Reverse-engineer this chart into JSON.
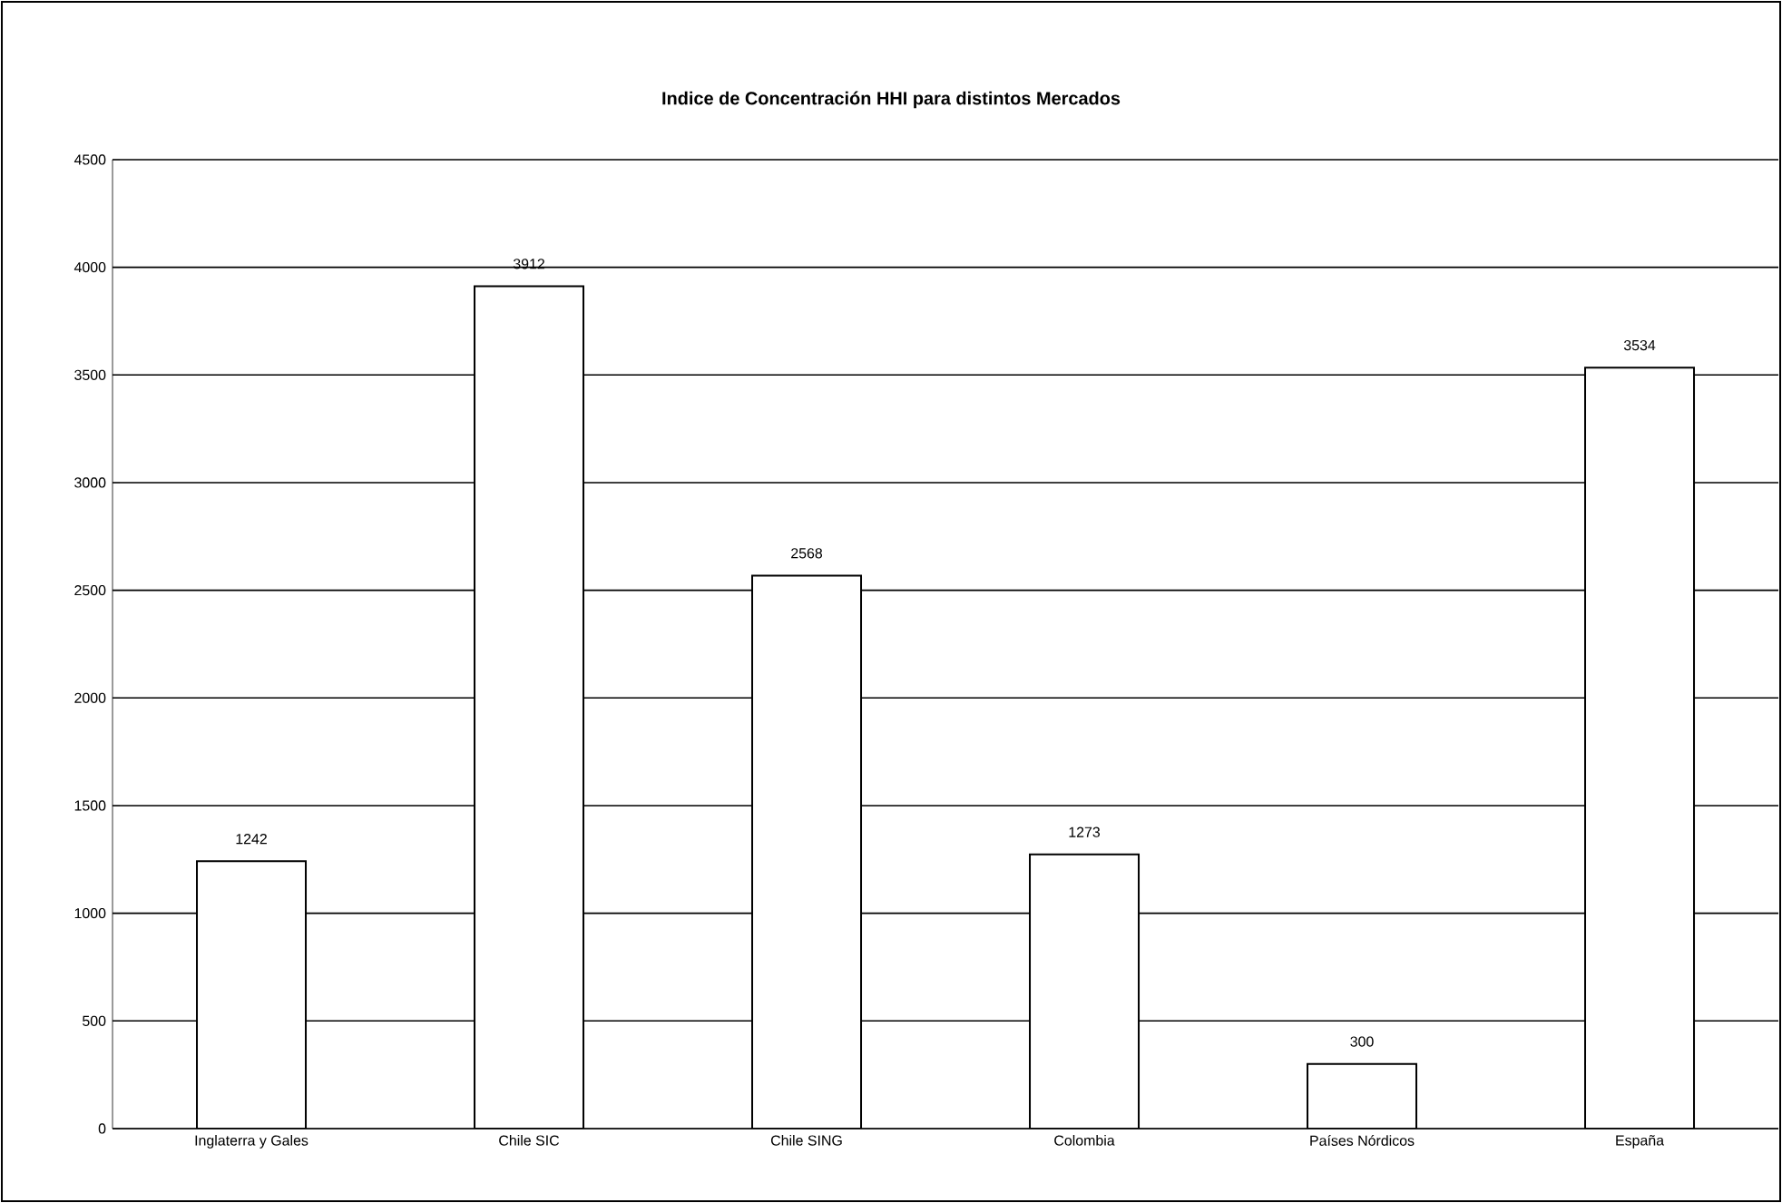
{
  "chart_data": {
    "type": "bar",
    "title": "Indice de Concentración HHI para distintos Mercados",
    "categories": [
      "Inglaterra y Gales",
      "Chile SIC",
      "Chile SING",
      "Colombia",
      "Países Nórdicos",
      "España"
    ],
    "values": [
      1242,
      3912,
      2568,
      1273,
      300,
      3534
    ],
    "color": "#ffffff",
    "ylim": [
      0,
      4500
    ],
    "yticks": [
      0,
      500,
      1000,
      1500,
      2000,
      2500,
      3000,
      3500,
      4000,
      4500
    ],
    "grid": "y",
    "data_labels": true
  }
}
